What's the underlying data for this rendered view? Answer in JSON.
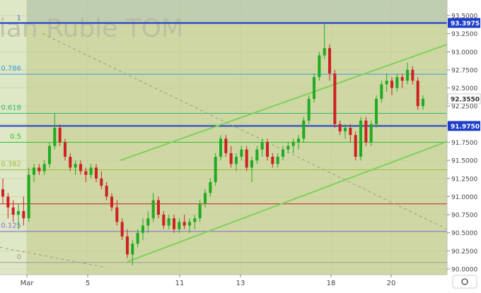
{
  "chart_data": {
    "type": "candlestick",
    "title": "sian Ruble TOM",
    "colors": {
      "bull": "#22aa22",
      "bear": "#cc2222",
      "fib": "#3a9ad9",
      "channel": "#7fd05a",
      "level_line": "#1f3ec8",
      "label_box": "#1f3ec8"
    },
    "ylim": [
      90.0,
      93.75
    ],
    "y_ticks": [
      "90.0000",
      "90.2500",
      "90.5000",
      "90.7500",
      "91.0000",
      "91.2500",
      "91.5000",
      "91.7500",
      "92.0000",
      "92.2500",
      "92.5000",
      "92.7500",
      "93.0000",
      "93.2500",
      "93.5000"
    ],
    "x_ticks": [
      "Mar",
      "5",
      "11",
      "13",
      "18",
      "20"
    ],
    "fib_levels": [
      {
        "label": "1",
        "price": 93.39,
        "color": "#4a6fb0"
      },
      {
        "label": "0.786",
        "price": 92.69,
        "color": "#3a9ad9"
      },
      {
        "label": "0.618",
        "price": 92.15,
        "color": "#36b86a"
      },
      {
        "label": "0.5",
        "price": 91.75,
        "color": "#2fc02f"
      },
      {
        "label": "0.382",
        "price": 91.37,
        "color": "#9ac23c"
      },
      {
        "label": "0.125",
        "price": 90.52,
        "color": "#8c6ad0"
      },
      {
        "label": "0",
        "price": 90.09,
        "color": "#9a9a9a"
      }
    ],
    "horizontal_levels": [
      {
        "price": 93.3975,
        "label": "93.3975",
        "color": "#1f3ec8"
      },
      {
        "price": 91.975,
        "label": "91.9750",
        "color": "#1f3ec8"
      },
      {
        "price": 90.9,
        "label": "",
        "color": "#cc3333"
      }
    ],
    "current_price_label": "92.3550",
    "series": [
      {
        "name": "",
        "ohlc": [
          [
            91.1,
            91.25,
            90.9,
            91.0
          ],
          [
            91.0,
            91.05,
            90.7,
            90.85
          ],
          [
            90.85,
            90.95,
            90.65,
            90.75
          ],
          [
            90.75,
            90.9,
            90.55,
            90.8
          ],
          [
            90.8,
            91.0,
            90.6,
            90.7
          ],
          [
            90.7,
            91.4,
            90.65,
            91.3
          ],
          [
            91.3,
            91.45,
            91.2,
            91.4
          ],
          [
            91.4,
            91.45,
            91.3,
            91.35
          ],
          [
            91.35,
            91.5,
            91.3,
            91.45
          ],
          [
            91.45,
            91.75,
            91.4,
            91.7
          ],
          [
            91.7,
            92.15,
            91.65,
            91.95
          ],
          [
            91.95,
            92.0,
            91.7,
            91.75
          ],
          [
            91.75,
            91.8,
            91.5,
            91.55
          ],
          [
            91.55,
            91.6,
            91.35,
            91.4
          ],
          [
            91.4,
            91.5,
            91.3,
            91.45
          ],
          [
            91.45,
            91.5,
            91.3,
            91.35
          ],
          [
            91.35,
            91.4,
            91.2,
            91.3
          ],
          [
            91.3,
            91.45,
            91.25,
            91.4
          ],
          [
            91.4,
            91.45,
            91.2,
            91.25
          ],
          [
            91.25,
            91.35,
            91.1,
            91.15
          ],
          [
            91.15,
            91.2,
            90.95,
            91.0
          ],
          [
            91.0,
            91.05,
            90.8,
            90.85
          ],
          [
            90.85,
            90.95,
            90.6,
            90.65
          ],
          [
            90.65,
            90.7,
            90.4,
            90.45
          ],
          [
            90.45,
            90.55,
            90.15,
            90.2
          ],
          [
            90.2,
            90.4,
            90.05,
            90.35
          ],
          [
            90.35,
            90.55,
            90.3,
            90.5
          ],
          [
            90.5,
            90.7,
            90.4,
            90.6
          ],
          [
            90.6,
            90.8,
            90.5,
            90.7
          ],
          [
            90.7,
            91.05,
            90.65,
            90.95
          ],
          [
            90.95,
            91.0,
            90.7,
            90.75
          ],
          [
            90.75,
            90.8,
            90.55,
            90.6
          ],
          [
            90.6,
            90.75,
            90.55,
            90.7
          ],
          [
            90.7,
            90.75,
            90.5,
            90.55
          ],
          [
            90.55,
            90.7,
            90.5,
            90.65
          ],
          [
            90.65,
            90.75,
            90.55,
            90.6
          ],
          [
            90.6,
            90.7,
            90.5,
            90.65
          ],
          [
            90.65,
            90.75,
            90.55,
            90.7
          ],
          [
            90.7,
            90.95,
            90.65,
            90.9
          ],
          [
            90.9,
            91.1,
            90.85,
            91.05
          ],
          [
            91.05,
            91.25,
            91.0,
            91.2
          ],
          [
            91.2,
            91.6,
            91.15,
            91.55
          ],
          [
            91.55,
            91.85,
            91.5,
            91.8
          ],
          [
            91.8,
            91.85,
            91.55,
            91.6
          ],
          [
            91.6,
            91.7,
            91.4,
            91.45
          ],
          [
            91.45,
            91.6,
            91.35,
            91.55
          ],
          [
            91.55,
            91.7,
            91.5,
            91.65
          ],
          [
            91.65,
            91.7,
            91.35,
            91.4
          ],
          [
            91.4,
            91.55,
            91.2,
            91.5
          ],
          [
            91.5,
            91.7,
            91.45,
            91.65
          ],
          [
            91.65,
            91.8,
            91.55,
            91.75
          ],
          [
            91.75,
            91.8,
            91.5,
            91.55
          ],
          [
            91.55,
            91.6,
            91.4,
            91.45
          ],
          [
            91.45,
            91.6,
            91.4,
            91.55
          ],
          [
            91.55,
            91.7,
            91.5,
            91.65
          ],
          [
            91.65,
            91.75,
            91.6,
            91.7
          ],
          [
            91.7,
            91.8,
            91.6,
            91.75
          ],
          [
            91.75,
            91.85,
            91.65,
            91.8
          ],
          [
            91.8,
            92.1,
            91.75,
            92.05
          ],
          [
            92.05,
            92.4,
            92.0,
            92.35
          ],
          [
            92.35,
            92.7,
            92.3,
            92.65
          ],
          [
            92.65,
            93.0,
            92.6,
            92.95
          ],
          [
            92.95,
            93.4,
            92.9,
            93.05
          ],
          [
            93.05,
            93.1,
            92.6,
            92.7
          ],
          [
            92.7,
            92.75,
            91.95,
            92.0
          ],
          [
            92.0,
            92.05,
            91.85,
            91.9
          ],
          [
            91.9,
            92.0,
            91.8,
            91.95
          ],
          [
            91.95,
            92.0,
            91.75,
            91.85
          ],
          [
            91.85,
            91.9,
            91.5,
            91.55
          ],
          [
            91.55,
            92.1,
            91.5,
            92.05
          ],
          [
            92.05,
            92.1,
            91.7,
            91.75
          ],
          [
            91.75,
            92.05,
            91.7,
            92.0
          ],
          [
            92.0,
            92.4,
            91.95,
            92.35
          ],
          [
            92.35,
            92.6,
            92.3,
            92.55
          ],
          [
            92.55,
            92.7,
            92.45,
            92.6
          ],
          [
            92.6,
            92.65,
            92.4,
            92.5
          ],
          [
            92.5,
            92.7,
            92.45,
            92.65
          ],
          [
            92.65,
            92.7,
            92.5,
            92.6
          ],
          [
            92.6,
            92.85,
            92.55,
            92.75
          ],
          [
            92.75,
            92.8,
            92.55,
            92.6
          ],
          [
            92.6,
            92.65,
            92.2,
            92.25
          ],
          [
            92.25,
            92.4,
            92.2,
            92.35
          ]
        ]
      }
    ]
  }
}
